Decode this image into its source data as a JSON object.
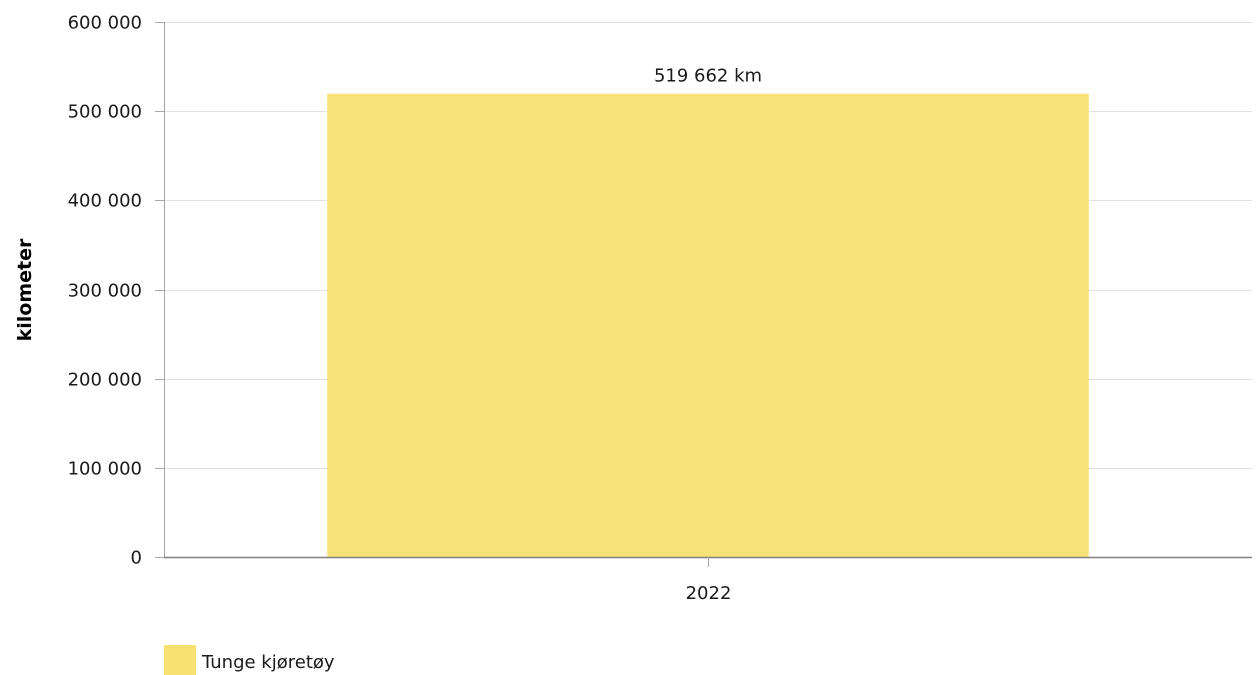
{
  "chart_data": {
    "type": "bar",
    "categories": [
      "2022"
    ],
    "series": [
      {
        "name": "Tunge kjøretøy",
        "values": [
          519662
        ],
        "color": "#f5e070",
        "data_labels": [
          "519 662 km"
        ]
      }
    ],
    "ylabel": "kilometer",
    "xlabel": "",
    "ylim": [
      0,
      600000
    ],
    "yticks": [
      0,
      100000,
      200000,
      300000,
      400000,
      500000,
      600000
    ],
    "ytick_labels": [
      "0",
      "100 000",
      "200 000",
      "300 000",
      "400 000",
      "500 000",
      "600 000"
    ],
    "grid": true,
    "legend_position": "bottom-left"
  }
}
